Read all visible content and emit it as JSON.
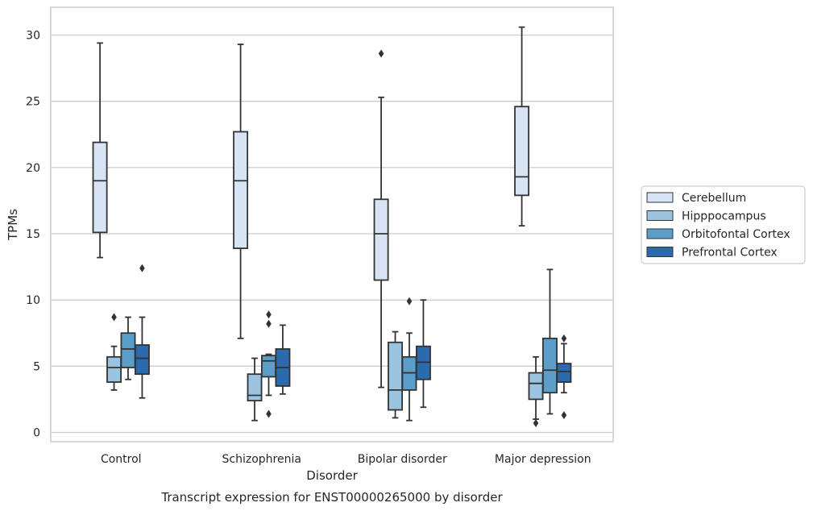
{
  "chart_data": {
    "type": "box",
    "caption": "Transcript expression for ENST00000265000 by disorder",
    "xlabel": "Disorder",
    "ylabel": "TPMs",
    "ylim": [
      -0.7,
      32.1
    ],
    "yticks": [
      0,
      5,
      10,
      15,
      20,
      25,
      30
    ],
    "grid": "horizontal",
    "legend_position": "right",
    "categories": [
      "Control",
      "Schizophrenia",
      "Bipolar disorder",
      "Major depression"
    ],
    "series": [
      {
        "name": "Cerebellum",
        "color": "#d6e4f3",
        "boxes": [
          {
            "whisker_low": 13.2,
            "q1": 15.1,
            "median": 19.0,
            "q3": 21.9,
            "whisker_high": 29.4,
            "outliers": []
          },
          {
            "whisker_low": 7.1,
            "q1": 13.9,
            "median": 19.0,
            "q3": 22.7,
            "whisker_high": 29.3,
            "outliers": []
          },
          {
            "whisker_low": 3.4,
            "q1": 11.5,
            "median": 15.0,
            "q3": 17.6,
            "whisker_high": 25.3,
            "outliers": [
              28.6
            ]
          },
          {
            "whisker_low": 15.6,
            "q1": 17.9,
            "median": 19.3,
            "q3": 24.6,
            "whisker_high": 30.6,
            "outliers": []
          }
        ]
      },
      {
        "name": "Hipppocampus",
        "color": "#9ac4e0",
        "boxes": [
          {
            "whisker_low": 3.2,
            "q1": 3.8,
            "median": 4.9,
            "q3": 5.7,
            "whisker_high": 6.5,
            "outliers": [
              8.7
            ]
          },
          {
            "whisker_low": 0.9,
            "q1": 2.4,
            "median": 2.8,
            "q3": 4.4,
            "whisker_high": 5.6,
            "outliers": []
          },
          {
            "whisker_low": 1.1,
            "q1": 1.7,
            "median": 3.2,
            "q3": 6.8,
            "whisker_high": 7.6,
            "outliers": []
          },
          {
            "whisker_low": 1.0,
            "q1": 2.5,
            "median": 3.7,
            "q3": 4.5,
            "whisker_high": 5.7,
            "outliers": [
              0.7
            ]
          }
        ]
      },
      {
        "name": "Orbitofontal Cortex",
        "color": "#5b9ec9",
        "boxes": [
          {
            "whisker_low": 4.0,
            "q1": 4.9,
            "median": 6.3,
            "q3": 7.5,
            "whisker_high": 8.7,
            "outliers": []
          },
          {
            "whisker_low": 2.8,
            "q1": 4.2,
            "median": 5.4,
            "q3": 5.8,
            "whisker_high": 5.9,
            "outliers": [
              1.4,
              8.2,
              8.9
            ]
          },
          {
            "whisker_low": 0.9,
            "q1": 3.2,
            "median": 4.5,
            "q3": 5.7,
            "whisker_high": 7.5,
            "outliers": [
              9.9
            ]
          },
          {
            "whisker_low": 1.4,
            "q1": 3.0,
            "median": 4.7,
            "q3": 7.1,
            "whisker_high": 12.3,
            "outliers": []
          }
        ]
      },
      {
        "name": "Prefrontal Cortex",
        "color": "#2a6aad",
        "boxes": [
          {
            "whisker_low": 2.6,
            "q1": 4.4,
            "median": 5.6,
            "q3": 6.6,
            "whisker_high": 8.7,
            "outliers": [
              12.4
            ]
          },
          {
            "whisker_low": 2.9,
            "q1": 3.5,
            "median": 4.9,
            "q3": 6.3,
            "whisker_high": 8.1,
            "outliers": []
          },
          {
            "whisker_low": 1.9,
            "q1": 4.0,
            "median": 5.3,
            "q3": 6.5,
            "whisker_high": 10.0,
            "outliers": []
          },
          {
            "whisker_low": 3.0,
            "q1": 3.8,
            "median": 4.6,
            "q3": 5.2,
            "whisker_high": 6.7,
            "outliers": [
              1.3,
              7.1
            ]
          }
        ]
      }
    ]
  }
}
